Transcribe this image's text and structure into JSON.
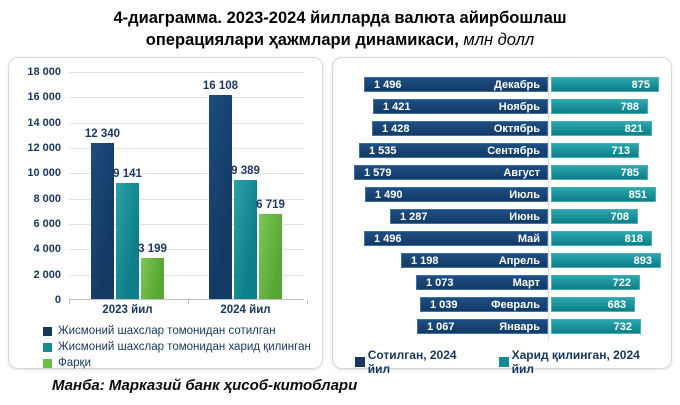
{
  "title": {
    "line1": "4-диаграмма. 2023-2024 йилларда валюта айирбошлаш",
    "line2_bold": "операциялари ҳажмлари динамикаси,",
    "line2_italic": "млн долл"
  },
  "source": "Манба: Марказий банк ҳисоб-китоблари",
  "colors": {
    "navy": "#17375E",
    "teal": "#128A94",
    "green": "#6BBE45",
    "grid": "#E2E2E2",
    "axis": "#BFBFBF",
    "label_text": "#1F3864"
  },
  "chart_data": [
    {
      "type": "bar",
      "title": "",
      "categories": [
        "2023 йил",
        "2024 йил"
      ],
      "series": [
        {
          "name": "Жисмоний шахслар томонидан сотилган",
          "color_key": "navy",
          "values": [
            12340,
            16108
          ],
          "labels": [
            "12 340",
            "16 108"
          ]
        },
        {
          "name": "Жисмоний шахслар томонидан харид қилинган",
          "color_key": "teal",
          "values": [
            9141,
            9389
          ],
          "labels": [
            "9 141",
            "9 389"
          ]
        },
        {
          "name": "Фарқи",
          "color_key": "green",
          "values": [
            3199,
            6719
          ],
          "labels": [
            "3 199",
            "6 719"
          ]
        }
      ],
      "ylim": [
        0,
        18000
      ],
      "ytick_step": 2000,
      "yticklabels": [
        "18 000",
        "16 000",
        "14 000",
        "12 000",
        "10 000",
        "8 000",
        "6 000",
        "4 000",
        "2 000",
        "0"
      ],
      "grid": true,
      "legend_position": "bottom-left"
    },
    {
      "type": "bar",
      "orientation": "horizontal-diverging",
      "title": "",
      "categories": [
        "Декабрь",
        "Ноябрь",
        "Октябрь",
        "Сентябрь",
        "Август",
        "Июль",
        "Июнь",
        "Май",
        "Апрель",
        "Март",
        "Февраль",
        "Январь"
      ],
      "series": [
        {
          "name": "Сотилган, 2024 йил",
          "color_key": "navy",
          "side": "left",
          "values": [
            1496,
            1421,
            1428,
            1535,
            1579,
            1490,
            1287,
            1496,
            1198,
            1073,
            1039,
            1067
          ],
          "labels": [
            "1 496",
            "1 421",
            "1 428",
            "1 535",
            "1 579",
            "1 490",
            "1 287",
            "1 496",
            "1 198",
            "1 073",
            "1 039",
            "1 067"
          ]
        },
        {
          "name": "Харид қилинган, 2024 йил",
          "color_key": "teal",
          "side": "right",
          "values": [
            875,
            788,
            821,
            713,
            785,
            851,
            708,
            818,
            893,
            722,
            683,
            732
          ],
          "labels": [
            "875",
            "788",
            "821",
            "713",
            "785",
            "851",
            "708",
            "818",
            "893",
            "722",
            "683",
            "732"
          ]
        }
      ],
      "xlim_left": [
        0,
        1650
      ],
      "xlim_right": [
        0,
        920
      ],
      "legend_position": "bottom"
    }
  ]
}
